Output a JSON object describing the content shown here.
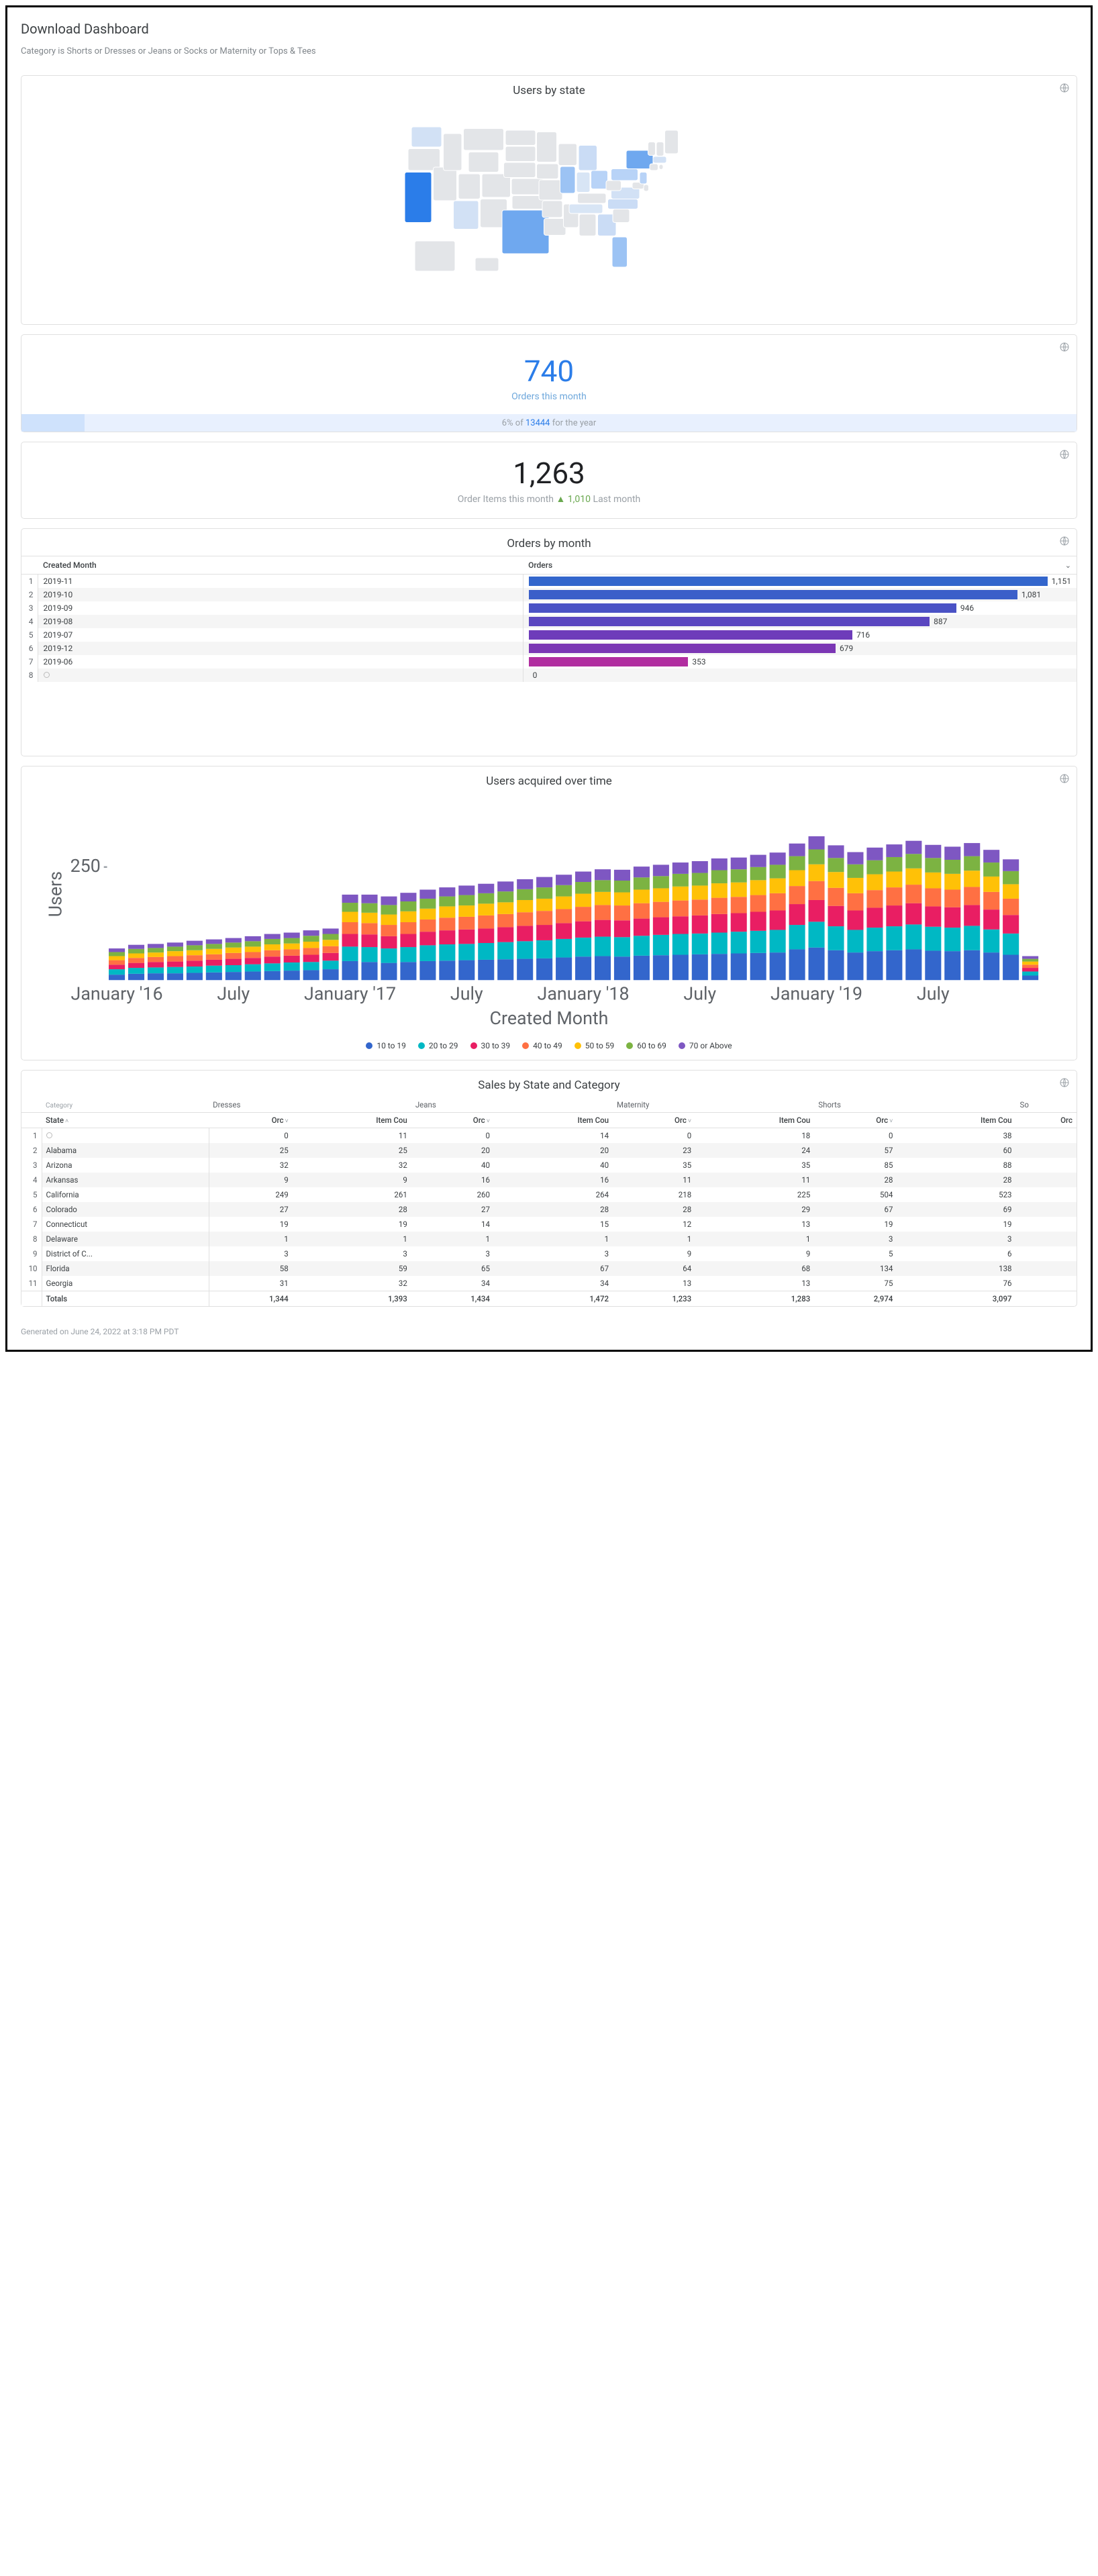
{
  "header": {
    "title": "Download Dashboard",
    "subtitle": "Category is Shorts or Dresses or Jeans or Socks or Maternity or Tops & Tees"
  },
  "map_panel": {
    "title": "Users by state",
    "type": "choropleth-map",
    "base_color": "#e3e5e8",
    "stroke_color": "#ffffff",
    "highlights": [
      {
        "state": "California",
        "color": "#2b7de9"
      },
      {
        "state": "Texas",
        "color": "#6fa8ef"
      },
      {
        "state": "New York",
        "color": "#6fa8ef"
      },
      {
        "state": "Florida",
        "color": "#9cc3f4"
      },
      {
        "state": "Illinois",
        "color": "#9cc3f4"
      },
      {
        "state": "Pennsylvania",
        "color": "#b8d3f7"
      },
      {
        "state": "Ohio",
        "color": "#b8d3f7"
      },
      {
        "state": "Georgia",
        "color": "#cadcf5"
      },
      {
        "state": "North Carolina",
        "color": "#cadcf5"
      },
      {
        "state": "Michigan",
        "color": "#cadcf5"
      },
      {
        "state": "Virginia",
        "color": "#d2e1f5"
      },
      {
        "state": "New Jersey",
        "color": "#b8d3f7"
      },
      {
        "state": "Washington",
        "color": "#d2e1f5"
      },
      {
        "state": "Arizona",
        "color": "#d2e1f5"
      },
      {
        "state": "Massachusetts",
        "color": "#d2e1f5"
      },
      {
        "state": "Tennessee",
        "color": "#d8e5f5"
      },
      {
        "state": "Indiana",
        "color": "#d8e5f5"
      }
    ]
  },
  "kpi_orders": {
    "value": "740",
    "value_color": "#2b7de9",
    "label": "Orders this month",
    "comparison_pct": "6%",
    "comparison_of": "of",
    "comparison_total": "13444",
    "comparison_suffix": "for the year",
    "bar_fill_pct": 6,
    "bar_bg": "#e8f0fe",
    "bar_fill_color": "#cfe2fc"
  },
  "kpi_items": {
    "value": "1,263",
    "label_prefix": "Order Items this month",
    "delta_symbol": "▲",
    "delta_value": "1,010",
    "delta_color": "#6aa84f",
    "label_suffix": "Last month"
  },
  "orders_by_month": {
    "type": "bar",
    "title": "Orders by month",
    "col_month": "Created Month",
    "col_orders": "Orders",
    "max_value": 1200,
    "rows": [
      {
        "idx": 1,
        "month": "2019-11",
        "value": 1151,
        "label": "1,151",
        "color": "#3366cc"
      },
      {
        "idx": 2,
        "month": "2019-10",
        "value": 1081,
        "label": "1,081",
        "color": "#3b5fc9"
      },
      {
        "idx": 3,
        "month": "2019-09",
        "value": 946,
        "label": "946",
        "color": "#4a52c5"
      },
      {
        "idx": 4,
        "month": "2019-08",
        "value": 887,
        "label": "887",
        "color": "#5a46c0"
      },
      {
        "idx": 5,
        "month": "2019-07",
        "value": 716,
        "label": "716",
        "color": "#6e3cba"
      },
      {
        "idx": 6,
        "month": "2019-12",
        "value": 679,
        "label": "679",
        "color": "#7b37b4"
      },
      {
        "idx": 7,
        "month": "2019-06",
        "value": 353,
        "label": "353",
        "color": "#b12da0"
      },
      {
        "idx": 8,
        "month": "",
        "value": 0,
        "label": "0",
        "color": "#e3349a"
      }
    ]
  },
  "users_acquired": {
    "type": "stacked-bar",
    "title": "Users acquired over time",
    "ylabel": "Users",
    "xlabel": "Created Month",
    "ymax": 380,
    "ytick": 250,
    "x_ticks": [
      "January '16",
      "July",
      "January '17",
      "July",
      "January '18",
      "July",
      "January '19",
      "July"
    ],
    "segment_order": [
      "10 to 19",
      "20 to 29",
      "30 to 39",
      "40 to 49",
      "50 to 59",
      "60 to 69",
      "70 or Above"
    ],
    "colors": {
      "10 to 19": "#3366cc",
      "20 to 29": "#00b8c4",
      "30 to 39": "#e91e63",
      "40 to 49": "#ff7043",
      "50 to 59": "#ffc107",
      "60 to 69": "#7cb342",
      "70 or Above": "#7e57c2"
    },
    "series": [
      [
        12,
        12,
        10,
        10,
        9,
        9,
        8
      ],
      [
        14,
        13,
        11,
        11,
        10,
        10,
        9
      ],
      [
        15,
        13,
        12,
        11,
        10,
        10,
        9
      ],
      [
        15,
        14,
        12,
        12,
        11,
        10,
        9
      ],
      [
        16,
        14,
        13,
        12,
        11,
        11,
        10
      ],
      [
        17,
        15,
        13,
        12,
        12,
        11,
        10
      ],
      [
        18,
        15,
        14,
        13,
        12,
        11,
        10
      ],
      [
        19,
        16,
        14,
        13,
        12,
        12,
        11
      ],
      [
        20,
        17,
        15,
        14,
        13,
        12,
        11
      ],
      [
        21,
        18,
        15,
        14,
        13,
        12,
        12
      ],
      [
        22,
        18,
        16,
        15,
        14,
        13,
        12
      ],
      [
        24,
        19,
        17,
        15,
        14,
        13,
        12
      ],
      [
        42,
        32,
        28,
        26,
        23,
        20,
        18
      ],
      [
        40,
        33,
        28,
        25,
        23,
        21,
        19
      ],
      [
        38,
        32,
        27,
        25,
        23,
        21,
        19
      ],
      [
        40,
        33,
        29,
        26,
        24,
        22,
        19
      ],
      [
        42,
        35,
        30,
        27,
        24,
        22,
        20
      ],
      [
        43,
        36,
        31,
        28,
        25,
        22,
        20
      ],
      [
        44,
        36,
        32,
        28,
        25,
        23,
        21
      ],
      [
        45,
        37,
        32,
        29,
        26,
        23,
        21
      ],
      [
        46,
        38,
        33,
        29,
        26,
        24,
        22
      ],
      [
        47,
        39,
        34,
        30,
        27,
        24,
        22
      ],
      [
        48,
        40,
        34,
        31,
        27,
        25,
        23
      ],
      [
        50,
        41,
        35,
        31,
        28,
        25,
        23
      ],
      [
        52,
        42,
        36,
        32,
        29,
        26,
        23
      ],
      [
        53,
        43,
        37,
        33,
        29,
        26,
        24
      ],
      [
        52,
        43,
        37,
        33,
        29,
        26,
        24
      ],
      [
        54,
        44,
        38,
        34,
        30,
        27,
        24
      ],
      [
        55,
        45,
        39,
        34,
        30,
        27,
        25
      ],
      [
        56,
        46,
        39,
        35,
        31,
        28,
        25
      ],
      [
        57,
        46,
        40,
        35,
        31,
        28,
        26
      ],
      [
        58,
        47,
        41,
        36,
        32,
        29,
        26
      ],
      [
        59,
        48,
        41,
        36,
        32,
        29,
        26
      ],
      [
        60,
        49,
        42,
        37,
        33,
        29,
        27
      ],
      [
        61,
        50,
        43,
        38,
        33,
        30,
        27
      ],
      [
        68,
        54,
        46,
        40,
        35,
        31,
        28
      ],
      [
        72,
        57,
        48,
        42,
        37,
        33,
        29
      ],
      [
        66,
        53,
        45,
        40,
        35,
        31,
        28
      ],
      [
        61,
        50,
        43,
        38,
        34,
        30,
        27
      ],
      [
        64,
        52,
        44,
        39,
        35,
        31,
        28
      ],
      [
        66,
        53,
        46,
        40,
        35,
        32,
        28
      ],
      [
        68,
        55,
        47,
        41,
        36,
        32,
        29
      ],
      [
        65,
        53,
        45,
        40,
        35,
        32,
        29
      ],
      [
        64,
        52,
        45,
        39,
        35,
        31,
        29
      ],
      [
        66,
        54,
        46,
        40,
        36,
        32,
        29
      ],
      [
        61,
        51,
        44,
        39,
        34,
        31,
        28
      ],
      [
        56,
        47,
        41,
        36,
        32,
        29,
        26
      ],
      [
        10,
        9,
        8,
        7,
        7,
        6,
        6
      ]
    ]
  },
  "sales_table": {
    "title": "Sales by State and Category",
    "category_label": "Category",
    "state_label": "State",
    "categories": [
      "Dresses",
      "Jeans",
      "Maternity",
      "Shorts",
      "So"
    ],
    "subcols": [
      "Orc",
      "Item Cou"
    ],
    "last_subcol": "Orc",
    "rows": [
      {
        "idx": 1,
        "state": "",
        "vals": [
          0,
          11,
          0,
          14,
          0,
          18,
          0,
          38
        ]
      },
      {
        "idx": 2,
        "state": "Alabama",
        "vals": [
          25,
          25,
          20,
          20,
          23,
          24,
          57,
          60
        ]
      },
      {
        "idx": 3,
        "state": "Arizona",
        "vals": [
          32,
          32,
          40,
          40,
          35,
          35,
          85,
          88
        ]
      },
      {
        "idx": 4,
        "state": "Arkansas",
        "vals": [
          9,
          9,
          16,
          16,
          11,
          11,
          28,
          28
        ]
      },
      {
        "idx": 5,
        "state": "California",
        "vals": [
          249,
          261,
          260,
          264,
          218,
          225,
          504,
          523
        ]
      },
      {
        "idx": 6,
        "state": "Colorado",
        "vals": [
          27,
          28,
          27,
          28,
          28,
          29,
          67,
          69
        ]
      },
      {
        "idx": 7,
        "state": "Connecticut",
        "vals": [
          19,
          19,
          14,
          15,
          12,
          13,
          19,
          19
        ]
      },
      {
        "idx": 8,
        "state": "Delaware",
        "vals": [
          1,
          1,
          1,
          1,
          1,
          1,
          3,
          3
        ]
      },
      {
        "idx": 9,
        "state": "District of C...",
        "vals": [
          3,
          3,
          3,
          3,
          9,
          9,
          5,
          6
        ]
      },
      {
        "idx": 10,
        "state": "Florida",
        "vals": [
          58,
          59,
          65,
          67,
          64,
          68,
          134,
          138
        ]
      },
      {
        "idx": 11,
        "state": "Georgia",
        "vals": [
          31,
          32,
          34,
          34,
          13,
          13,
          75,
          76
        ]
      }
    ],
    "totals_label": "Totals",
    "totals": [
      1344,
      1393,
      1434,
      1472,
      1233,
      1283,
      2974,
      3097
    ]
  },
  "footer": "Generated on June 24, 2022 at 3:18 PM PDT"
}
